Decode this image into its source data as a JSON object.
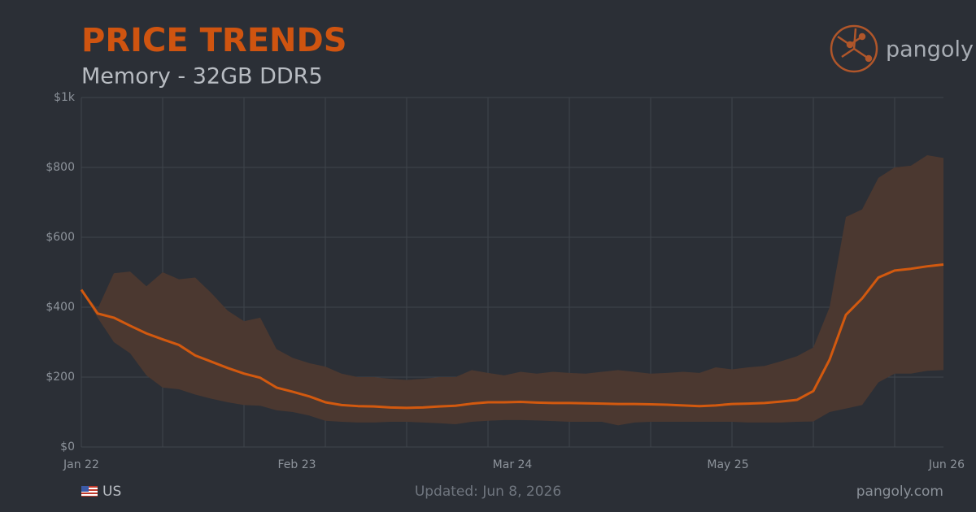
{
  "chart_data": {
    "type": "range-line",
    "title": "PRICE TRENDS",
    "subtitle": "Memory - 32GB DDR5",
    "brand": "pangoly",
    "region": "US",
    "updated": "Updated: Jun 8, 2026",
    "site": "pangoly.com",
    "x": [
      0,
      1,
      2,
      3,
      4,
      5,
      6,
      7,
      8,
      9,
      10,
      11,
      12,
      13,
      14,
      15,
      16,
      17,
      18,
      19,
      20,
      21,
      22,
      23,
      24,
      25,
      26,
      27,
      28,
      29,
      30,
      31,
      32,
      33,
      34,
      35,
      36,
      37,
      38,
      39,
      40,
      41,
      42,
      43,
      44,
      45,
      46,
      47,
      48,
      49,
      50,
      51,
      52,
      53
    ],
    "values": [
      450,
      382,
      370,
      347,
      325,
      308,
      292,
      262,
      244,
      226,
      210,
      198,
      170,
      158,
      145,
      128,
      120,
      117,
      116,
      113,
      112,
      113,
      116,
      118,
      124,
      128,
      128,
      129,
      127,
      126,
      126,
      125,
      124,
      123,
      123,
      122,
      121,
      119,
      117,
      119,
      123,
      124,
      126,
      130,
      135,
      160,
      250,
      378,
      425,
      485,
      505,
      510,
      517,
      522
    ],
    "range_high": [
      450,
      395,
      497,
      502,
      460,
      500,
      480,
      485,
      440,
      390,
      360,
      370,
      280,
      255,
      240,
      230,
      210,
      200,
      200,
      195,
      192,
      195,
      200,
      200,
      220,
      212,
      205,
      215,
      210,
      215,
      212,
      210,
      215,
      220,
      215,
      210,
      212,
      215,
      212,
      228,
      222,
      228,
      232,
      245,
      260,
      285,
      400,
      658,
      680,
      770,
      800,
      805,
      835,
      827
    ],
    "range_low": [
      450,
      370,
      300,
      268,
      205,
      170,
      165,
      150,
      138,
      128,
      120,
      118,
      105,
      100,
      90,
      75,
      72,
      70,
      70,
      72,
      72,
      70,
      68,
      65,
      72,
      75,
      77,
      77,
      76,
      74,
      72,
      72,
      72,
      62,
      70,
      72,
      72,
      72,
      72,
      72,
      72,
      70,
      70,
      70,
      72,
      73,
      100,
      110,
      120,
      185,
      210,
      210,
      218,
      220
    ],
    "color": "#d2590f",
    "band_color": "#4b3830",
    "xlim": [
      0,
      53
    ],
    "xticks": [
      {
        "value": 0,
        "label": "Jan 22"
      },
      {
        "value": 13.25,
        "label": "Feb 23"
      },
      {
        "value": 26.5,
        "label": "Mar 24"
      },
      {
        "value": 39.75,
        "label": "May 25"
      },
      {
        "value": 53,
        "label": "Jun 26"
      }
    ],
    "xgrid": [
      0,
      5,
      10,
      15,
      20,
      25,
      30,
      35,
      40,
      45,
      50
    ],
    "ylim": [
      0,
      1000
    ],
    "yticks": [
      {
        "value": 0,
        "label": "$0"
      },
      {
        "value": 200,
        "label": "$200"
      },
      {
        "value": 400,
        "label": "$400"
      },
      {
        "value": 600,
        "label": "$600"
      },
      {
        "value": 800,
        "label": "$800"
      },
      {
        "value": 1000,
        "label": "$1k"
      }
    ],
    "grid": true
  }
}
